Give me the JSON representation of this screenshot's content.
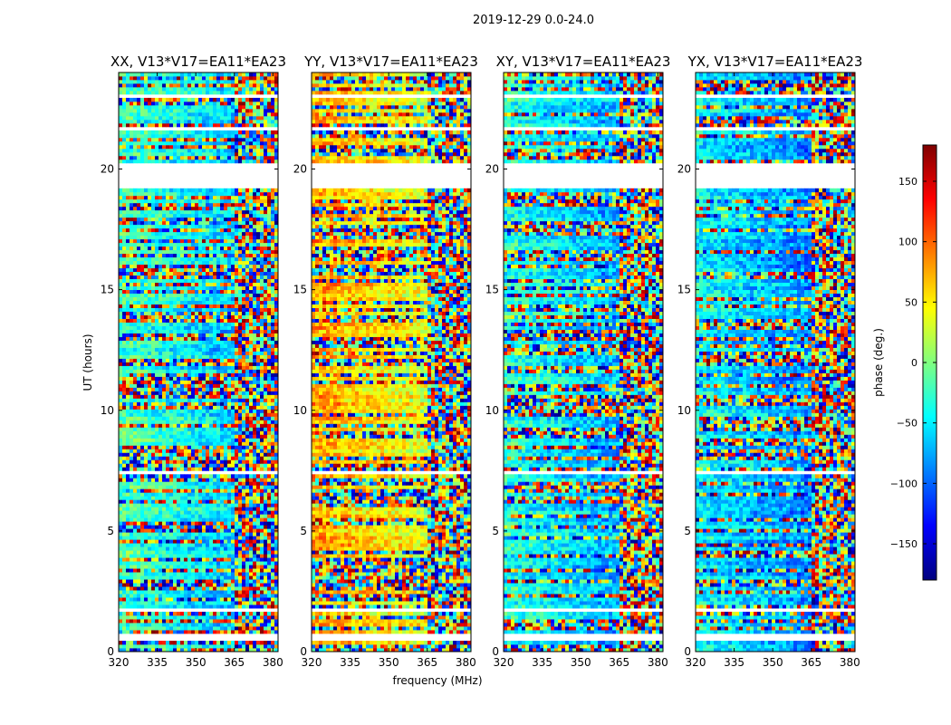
{
  "chart_data": {
    "type": "heatmap",
    "suptitle": "2019-12-29 0.0-24.0",
    "xlabel": "frequency (MHz)",
    "ylabel": "UT (hours)",
    "xlim": [
      320,
      382
    ],
    "ylim": [
      0,
      24
    ],
    "x_ticks": [
      320,
      335,
      350,
      365,
      380
    ],
    "y_ticks": [
      0,
      5,
      10,
      15,
      20
    ],
    "panels": [
      {
        "title": "XX, V13*V17=EA11*EA23",
        "pol": "XX"
      },
      {
        "title": "YY, V13*V17=EA11*EA23",
        "pol": "YY"
      },
      {
        "title": "XY, V13*V17=EA11*EA23",
        "pol": "XY"
      },
      {
        "title": "YX, V13*V17=EA11*EA23",
        "pol": "YX"
      }
    ],
    "colorbar": {
      "label": "phase (deg.)",
      "range": [
        -180,
        180
      ],
      "ticks": [
        -150,
        -100,
        -50,
        0,
        50,
        100,
        150
      ],
      "tick_labels": [
        "−150",
        "−100",
        "−50",
        "0",
        "50",
        "100",
        "150"
      ],
      "colormap": "jet"
    },
    "flagged_ut_ranges": [
      [
        0.5,
        0.7
      ],
      [
        1.6,
        1.8
      ],
      [
        7.3,
        7.45
      ],
      [
        19.2,
        20.3
      ],
      [
        21.6,
        21.75
      ],
      [
        22.9,
        23.05
      ]
    ]
  }
}
